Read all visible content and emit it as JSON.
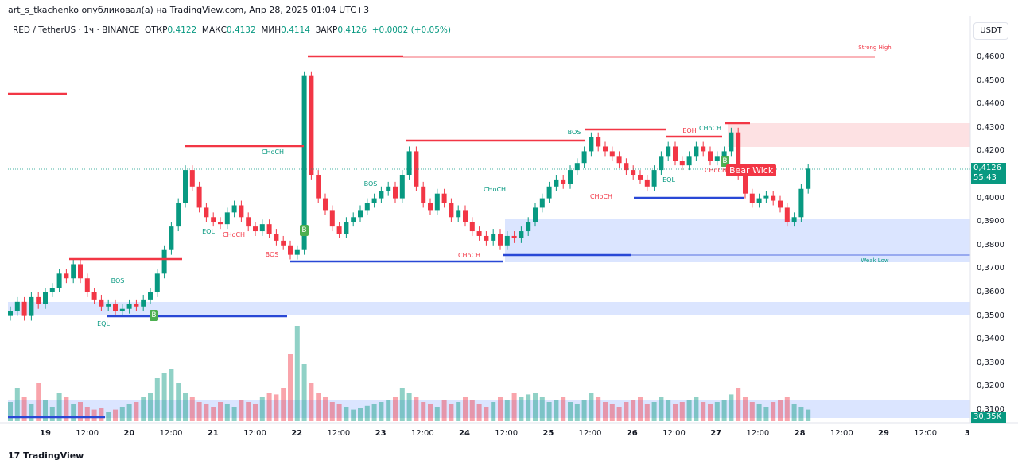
{
  "header": {
    "published": "art_s_tkachenko опубликовал(а) на TradingView.com, Апр 28, 2025 01:04 UTC+3"
  },
  "legend": {
    "symbol": "RED / TetherUS · 1ч · BINANCE",
    "open_label": "ОТКР",
    "open": "0,4122",
    "high_label": "МАКС",
    "high": "0,4132",
    "low_label": "МИН",
    "low": "0,4114",
    "close_label": "ЗАКР",
    "close": "0,4126",
    "change": "+0,0002 (+0,05%)"
  },
  "price_axis": {
    "currency": "USDT",
    "ticks": [
      "0,4600",
      "0,4500",
      "0,4400",
      "0,4300",
      "0,4200",
      "0,4000",
      "0,3900",
      "0,3800",
      "0,3700",
      "0,3600",
      "0,3500",
      "0,3400",
      "0,3300",
      "0,3200",
      "0,3100"
    ],
    "last_price": "0,4126",
    "countdown": "55:43",
    "volume": "30,35K"
  },
  "time_axis": [
    "19",
    "12:00",
    "20",
    "12:00",
    "21",
    "12:00",
    "22",
    "12:00",
    "23",
    "12:00",
    "24",
    "12:00",
    "25",
    "12:00",
    "26",
    "12:00",
    "27",
    "12:00",
    "28",
    "12:00",
    "29",
    "12:00",
    "3"
  ],
  "annotations": {
    "bos": "BOS",
    "choch": "CHoCH",
    "eql": "EQL",
    "eqh": "EQH",
    "strong_high": "Strong High",
    "weak_low": "Weak Low",
    "bear_wick": "Bear Wick",
    "buy": "B"
  },
  "colors": {
    "up": "#089981",
    "down": "#f23645",
    "zone_blue": "#2962ff",
    "zone_red": "#f23645"
  },
  "footer": {
    "brand": "TradingView"
  },
  "chart_data": {
    "type": "candlestick",
    "interval": "1h",
    "ylim": [
      0.31,
      0.465
    ],
    "closes": [
      0.352,
      0.356,
      0.35,
      0.358,
      0.355,
      0.36,
      0.362,
      0.368,
      0.366,
      0.372,
      0.366,
      0.36,
      0.357,
      0.354,
      0.355,
      0.352,
      0.353,
      0.355,
      0.354,
      0.357,
      0.36,
      0.368,
      0.378,
      0.388,
      0.398,
      0.412,
      0.405,
      0.396,
      0.392,
      0.39,
      0.389,
      0.394,
      0.397,
      0.392,
      0.388,
      0.386,
      0.389,
      0.385,
      0.382,
      0.38,
      0.376,
      0.378,
      0.452,
      0.41,
      0.4,
      0.395,
      0.388,
      0.385,
      0.39,
      0.392,
      0.395,
      0.398,
      0.4,
      0.403,
      0.405,
      0.4,
      0.41,
      0.42,
      0.405,
      0.398,
      0.395,
      0.402,
      0.398,
      0.392,
      0.395,
      0.39,
      0.386,
      0.384,
      0.382,
      0.385,
      0.38,
      0.384,
      0.383,
      0.386,
      0.39,
      0.396,
      0.4,
      0.405,
      0.408,
      0.406,
      0.412,
      0.415,
      0.42,
      0.426,
      0.422,
      0.42,
      0.418,
      0.415,
      0.412,
      0.41,
      0.408,
      0.405,
      0.412,
      0.418,
      0.422,
      0.416,
      0.414,
      0.418,
      0.422,
      0.42,
      0.416,
      0.418,
      0.42,
      0.428,
      0.41,
      0.402,
      0.398,
      0.4,
      0.401,
      0.399,
      0.396,
      0.39,
      0.392,
      0.404,
      0.4126
    ],
    "volumes": [
      20,
      35,
      25,
      18,
      40,
      22,
      15,
      30,
      25,
      18,
      20,
      15,
      12,
      14,
      10,
      12,
      15,
      18,
      20,
      25,
      30,
      45,
      50,
      55,
      40,
      30,
      25,
      20,
      18,
      15,
      20,
      18,
      15,
      22,
      20,
      18,
      25,
      30,
      28,
      35,
      70,
      100,
      60,
      40,
      30,
      25,
      20,
      18,
      15,
      12,
      14,
      16,
      18,
      20,
      22,
      25,
      35,
      30,
      25,
      20,
      18,
      15,
      22,
      18,
      20,
      25,
      22,
      18,
      15,
      20,
      25,
      22,
      30,
      25,
      28,
      30,
      25,
      20,
      22,
      25,
      20,
      18,
      22,
      30,
      25,
      20,
      18,
      15,
      20,
      22,
      25,
      18,
      20,
      25,
      22,
      18,
      20,
      22,
      25,
      20,
      18,
      20,
      22,
      28,
      35,
      25,
      20,
      18,
      15,
      20,
      22,
      25,
      18,
      15,
      12
    ]
  }
}
